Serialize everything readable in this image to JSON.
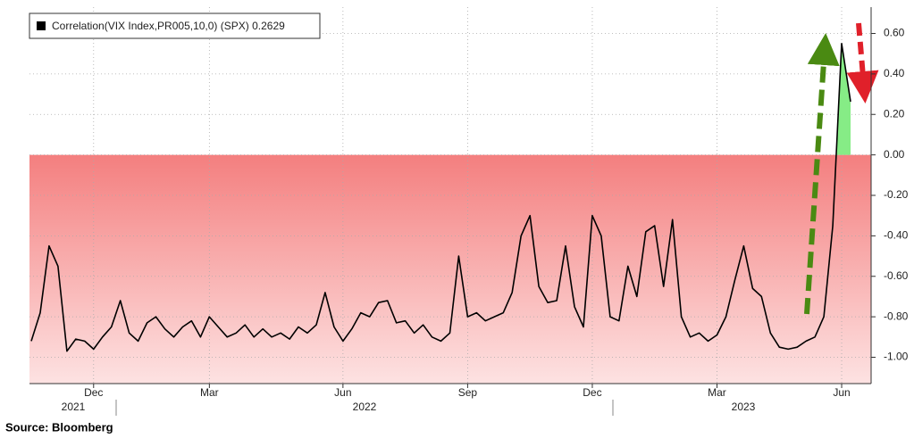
{
  "chart_data": {
    "type": "line",
    "categories": [
      null,
      null,
      null,
      null,
      null,
      null,
      null,
      "Dec",
      null,
      null,
      null,
      null,
      null,
      null,
      null,
      null,
      null,
      null,
      null,
      null,
      "Mar",
      null,
      null,
      null,
      null,
      null,
      null,
      null,
      null,
      null,
      null,
      null,
      null,
      null,
      null,
      "Jun",
      null,
      null,
      null,
      null,
      null,
      null,
      null,
      null,
      null,
      null,
      null,
      null,
      null,
      "Sep",
      null,
      null,
      null,
      null,
      null,
      null,
      null,
      null,
      null,
      null,
      null,
      null,
      null,
      "Dec",
      null,
      null,
      null,
      null,
      null,
      null,
      null,
      null,
      null,
      null,
      null,
      null,
      null,
      "Mar",
      null,
      null,
      null,
      null,
      null,
      null,
      null,
      null,
      null,
      null,
      null,
      null,
      null,
      "Jun",
      null
    ],
    "years": [
      "2021",
      "2022",
      "2023"
    ],
    "series": [
      {
        "name": "Correlation(VIX Index,PR005,10,0) (SPX)",
        "color": "#000000",
        "values": [
          -0.92,
          -0.78,
          -0.45,
          -0.55,
          -0.97,
          -0.91,
          -0.92,
          -0.96,
          -0.9,
          -0.85,
          -0.72,
          -0.88,
          -0.92,
          -0.83,
          -0.8,
          -0.86,
          -0.9,
          -0.85,
          -0.82,
          -0.9,
          -0.8,
          -0.85,
          -0.9,
          -0.88,
          -0.84,
          -0.9,
          -0.86,
          -0.9,
          -0.88,
          -0.91,
          -0.85,
          -0.88,
          -0.84,
          -0.68,
          -0.85,
          -0.92,
          -0.86,
          -0.78,
          -0.8,
          -0.73,
          -0.72,
          -0.83,
          -0.82,
          -0.88,
          -0.84,
          -0.9,
          -0.92,
          -0.88,
          -0.5,
          -0.8,
          -0.78,
          -0.82,
          -0.8,
          -0.78,
          -0.68,
          -0.4,
          -0.3,
          -0.65,
          -0.73,
          -0.72,
          -0.45,
          -0.75,
          -0.85,
          -0.3,
          -0.4,
          -0.8,
          -0.82,
          -0.55,
          -0.7,
          -0.38,
          -0.35,
          -0.65,
          -0.32,
          -0.8,
          -0.9,
          -0.88,
          -0.92,
          -0.89,
          -0.8,
          -0.62,
          -0.45,
          -0.66,
          -0.7,
          -0.88,
          -0.95,
          -0.96,
          -0.95,
          -0.92,
          -0.9,
          -0.8,
          -0.35,
          0.55,
          0.2629
        ]
      }
    ],
    "ylim": [
      -1.13,
      0.73
    ],
    "yticks": [
      {
        "value": -1,
        "label": "-1.00"
      },
      {
        "value": -0.8,
        "label": "-0.80"
      },
      {
        "value": -0.6,
        "label": "-0.60"
      },
      {
        "value": -0.4,
        "label": "-0.40"
      },
      {
        "value": -0.2,
        "label": "-0.20"
      },
      {
        "value": 0,
        "label": "0.00"
      },
      {
        "value": 0.2,
        "label": "0.20"
      },
      {
        "value": 0.4,
        "label": "0.40"
      },
      {
        "value": 0.6,
        "label": "0.60"
      }
    ],
    "grid": true,
    "negative_fill": [
      "#f47f7f",
      "#fde2e2"
    ],
    "positive_fill": "#86ec86"
  },
  "source": "Source: Bloomberg"
}
